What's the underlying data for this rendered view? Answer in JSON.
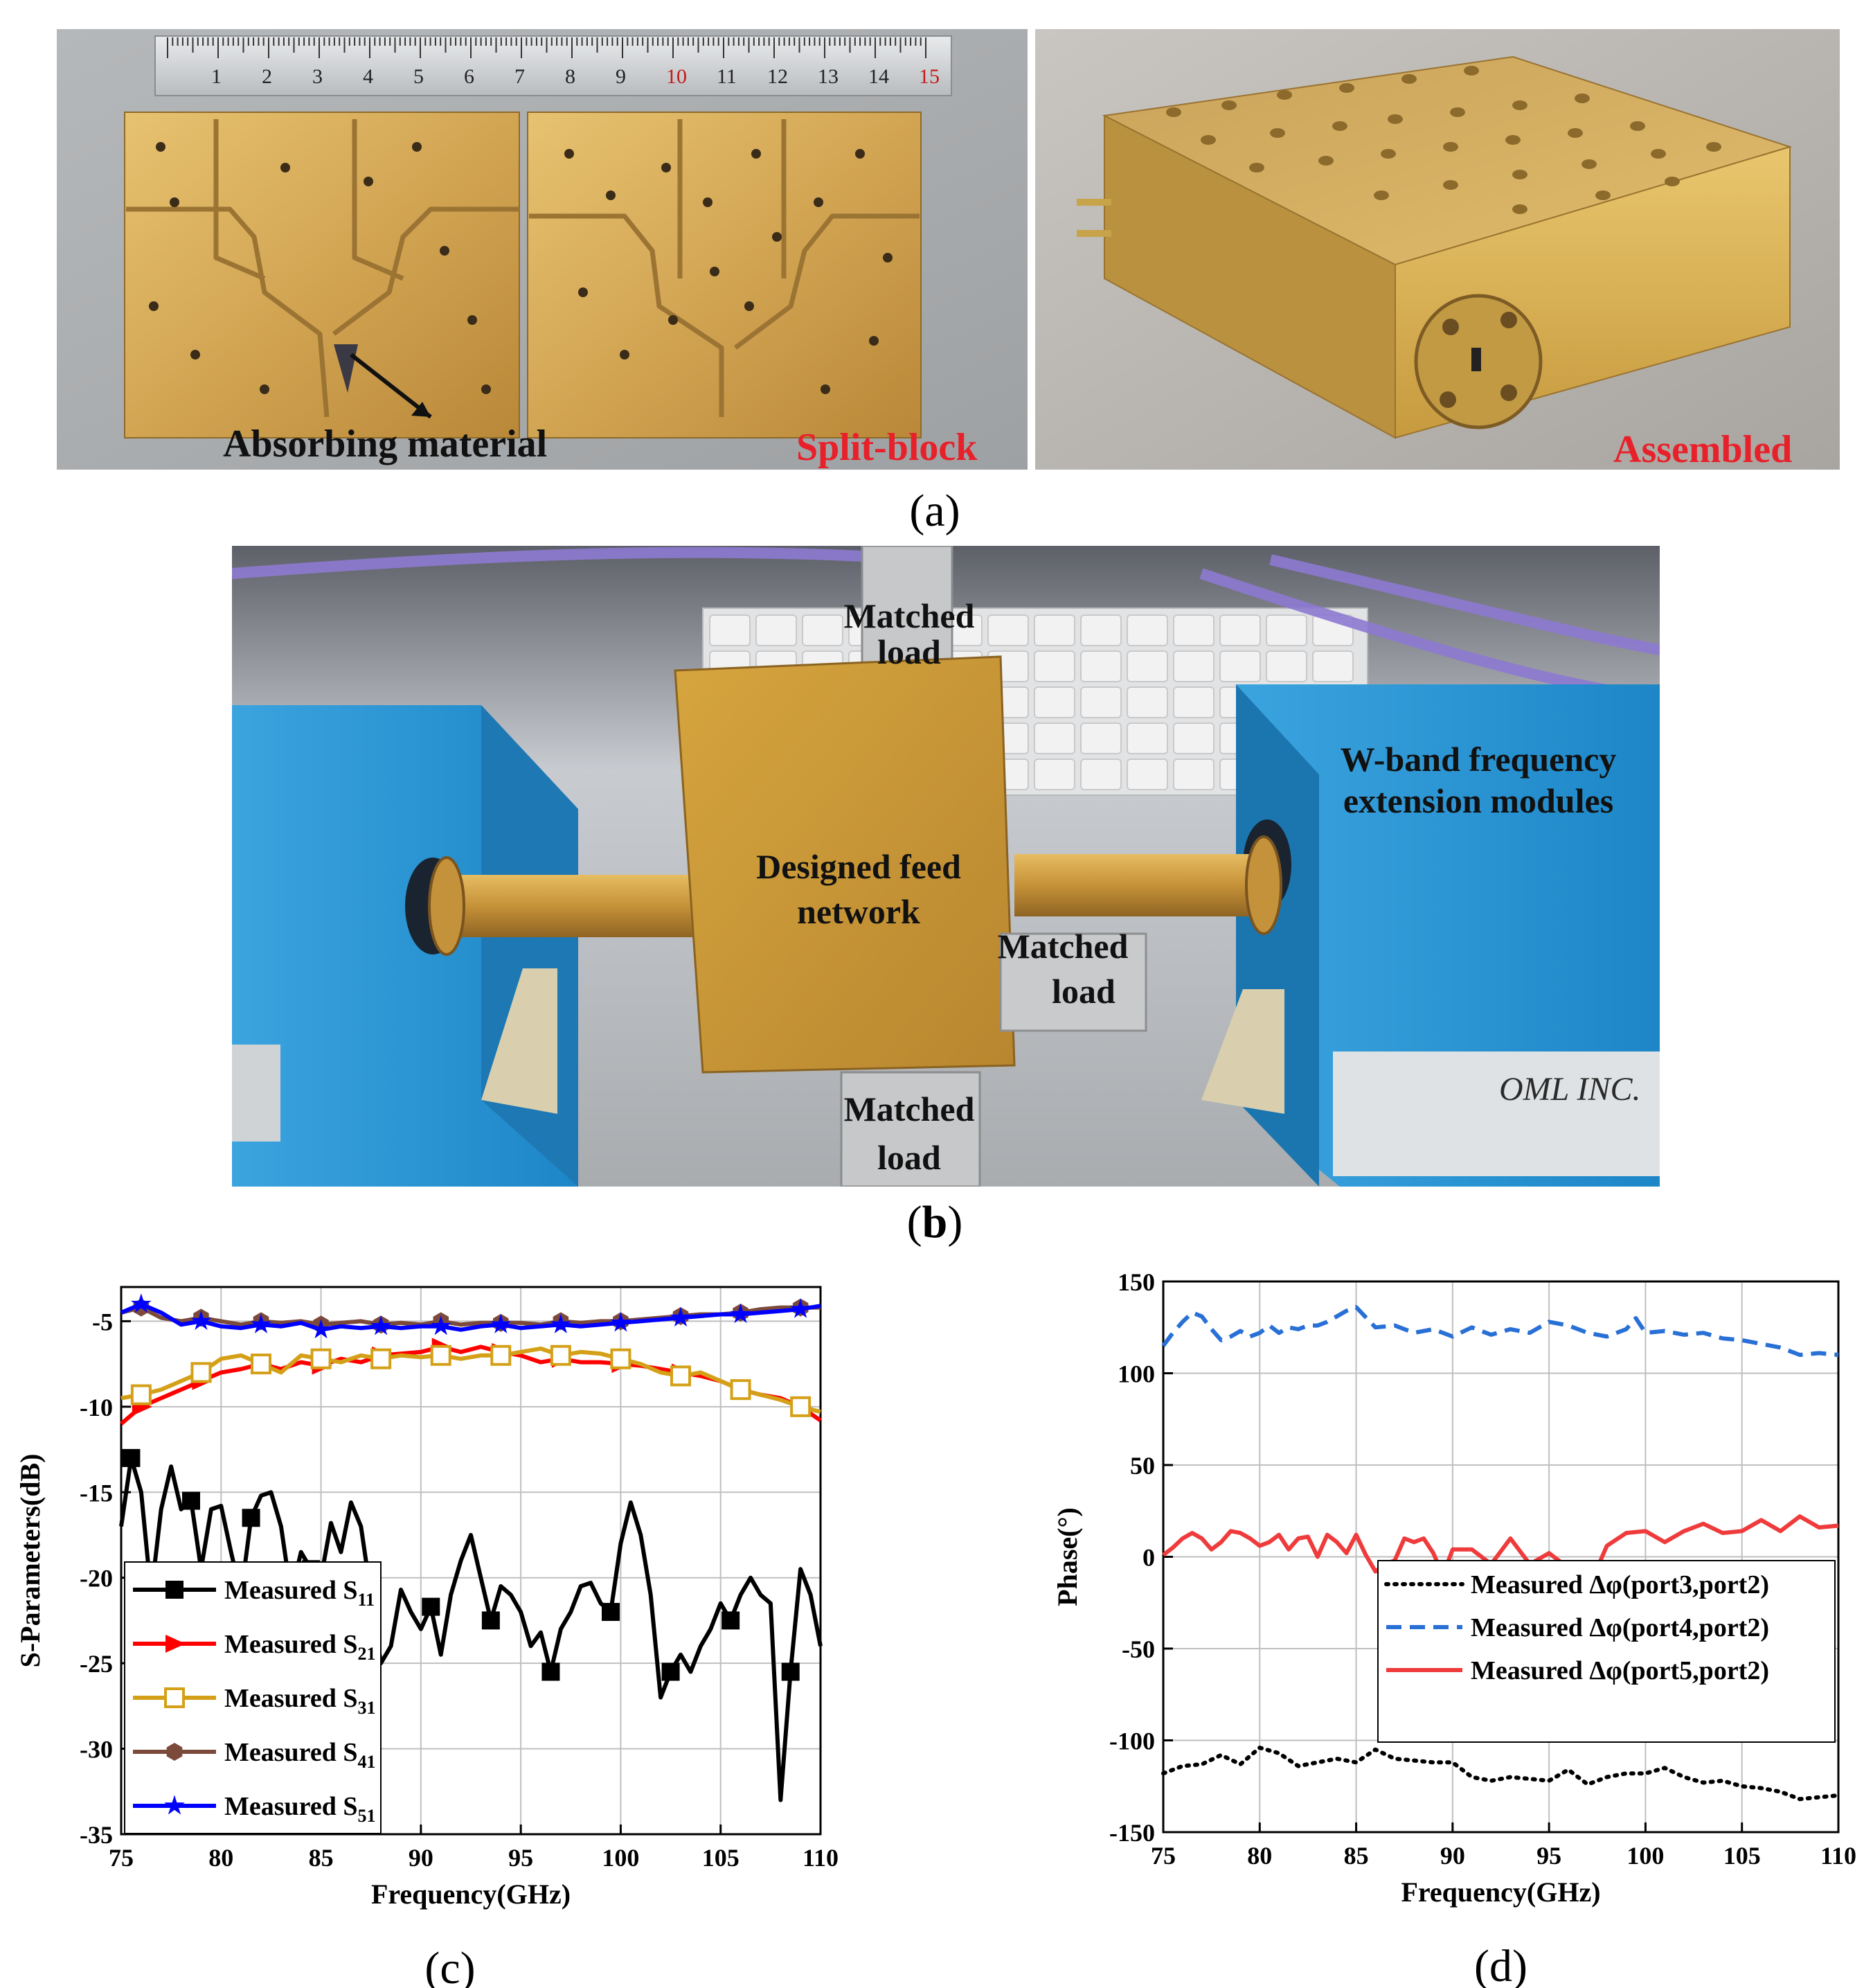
{
  "panel_a": {
    "caption_open": "(",
    "caption_letter": "a",
    "caption_close": ")",
    "ruler_numbers": [
      "1",
      "2",
      "3",
      "4",
      "5",
      "6",
      "7",
      "8",
      "9",
      "10",
      "11",
      "12",
      "13",
      "14",
      "15"
    ],
    "absorbing_label": "Absorbing material",
    "split_label": "Split-block",
    "assembled_label": "Assembled",
    "accent_red": "#e8202a"
  },
  "panel_b": {
    "caption_open": "(",
    "caption_letter": "b",
    "caption_close": ")",
    "load_top": [
      "Matched",
      "load"
    ],
    "load_right": [
      "Matched",
      "load"
    ],
    "load_bottom": [
      "Matched",
      "load"
    ],
    "feed_label": [
      "Designed feed",
      "network"
    ],
    "module_label": [
      "W-band frequency",
      "extension modules"
    ],
    "oml_brand": "OML INC.",
    "module_color": "#2a9bd6"
  },
  "panel_c": {
    "caption": "(c)",
    "chart_data": {
      "type": "line",
      "xlabel": "Frequency(GHz)",
      "ylabel": "S-Parameters(dB)",
      "xlim": [
        75,
        110
      ],
      "ylim": [
        -35,
        -3
      ],
      "xticks": [
        75,
        80,
        85,
        90,
        95,
        100,
        105,
        110
      ],
      "yticks": [
        -35,
        -30,
        -25,
        -20,
        -15,
        -10,
        -5
      ],
      "grid": true,
      "legend": "bottom-left",
      "series": [
        {
          "name": "Measured S11",
          "color": "#000000",
          "marker": "square",
          "x": [
            75,
            75.5,
            76,
            76.5,
            77,
            77.5,
            78,
            78.5,
            79,
            79.5,
            80,
            80.5,
            81,
            81.5,
            82,
            82.5,
            83,
            83.5,
            84,
            84.5,
            85,
            85.5,
            86,
            86.5,
            87,
            87.5,
            88,
            88.5,
            89,
            89.5,
            90,
            90.5,
            91,
            91.5,
            92,
            92.5,
            93,
            93.5,
            94,
            94.5,
            95,
            95.5,
            96,
            96.5,
            97,
            97.5,
            98,
            98.5,
            99,
            99.5,
            100,
            100.5,
            101,
            101.5,
            102,
            102.5,
            103,
            103.5,
            104,
            104.5,
            105,
            105.5,
            106,
            106.5,
            107,
            107.5,
            108,
            108.5,
            109,
            109.5,
            110
          ],
          "y": [
            -17,
            -13,
            -15,
            -21,
            -16,
            -13.5,
            -16,
            -15.5,
            -19.5,
            -16,
            -15.8,
            -18.5,
            -21,
            -16.5,
            -15.2,
            -15,
            -17,
            -21,
            -18.5,
            -19.5,
            -20,
            -16.8,
            -18.5,
            -15.6,
            -17,
            -21,
            -25,
            -24,
            -20.7,
            -22,
            -23,
            -21.7,
            -24.5,
            -21,
            -19,
            -17.5,
            -20,
            -22.5,
            -20.5,
            -21,
            -22,
            -24,
            -23.2,
            -25.5,
            -23,
            -22,
            -20.5,
            -20.3,
            -21.5,
            -22,
            -18,
            -15.6,
            -17.5,
            -21,
            -27,
            -25.5,
            -24.5,
            -25.5,
            -24,
            -23,
            -21.5,
            -22.5,
            -21,
            -20,
            -21,
            -21.5,
            -33,
            -25.5,
            -19.5,
            -21,
            -24
          ]
        },
        {
          "name": "Measured S21",
          "color": "#ff0000",
          "marker": "triangle",
          "x": [
            75,
            76,
            77,
            78,
            79,
            80,
            81,
            82,
            83,
            84,
            85,
            86,
            87,
            88,
            89,
            90,
            91,
            92,
            93,
            94,
            95,
            96,
            97,
            98,
            99,
            100,
            101,
            102,
            103,
            104,
            105,
            106,
            107,
            108,
            109,
            110
          ],
          "y": [
            -11,
            -10,
            -9.5,
            -9,
            -8.5,
            -8,
            -7.8,
            -7.5,
            -7.8,
            -7.4,
            -7.6,
            -7.2,
            -7.4,
            -7,
            -6.9,
            -6.8,
            -6.5,
            -6.8,
            -6.5,
            -6.8,
            -7.0,
            -7.4,
            -7.2,
            -7.4,
            -7.4,
            -7.5,
            -7.6,
            -7.8,
            -8.0,
            -8.2,
            -8.5,
            -9,
            -9.3,
            -9.5,
            -10,
            -10.8
          ]
        },
        {
          "name": "Measured S31",
          "color": "#d4a017",
          "marker": "open-square",
          "x": [
            75,
            76,
            77,
            78,
            79,
            80,
            81,
            82,
            83,
            84,
            85,
            86,
            87,
            88,
            89,
            90,
            91,
            92,
            93,
            94,
            95,
            96,
            97,
            98,
            99,
            100,
            101,
            102,
            103,
            104,
            105,
            106,
            107,
            108,
            109,
            110
          ],
          "y": [
            -9.5,
            -9.3,
            -9.0,
            -8.5,
            -8.0,
            -7.2,
            -7.0,
            -7.5,
            -8.0,
            -7.0,
            -7.2,
            -7.4,
            -7.0,
            -7.2,
            -7.0,
            -7.1,
            -7.0,
            -7.2,
            -7.0,
            -7.0,
            -6.8,
            -6.6,
            -7.0,
            -6.8,
            -6.9,
            -7.2,
            -7.5,
            -8.0,
            -8.2,
            -8.0,
            -8.5,
            -9.0,
            -9.3,
            -9.6,
            -10.0,
            -10.3
          ]
        },
        {
          "name": "Measured S41",
          "color": "#7b4a3a",
          "marker": "hexagon",
          "x": [
            75,
            76,
            77,
            78,
            79,
            80,
            81,
            82,
            83,
            84,
            85,
            86,
            87,
            88,
            89,
            90,
            91,
            92,
            93,
            94,
            95,
            96,
            97,
            98,
            99,
            100,
            101,
            102,
            103,
            104,
            105,
            106,
            107,
            108,
            109,
            110
          ],
          "y": [
            -4.5,
            -4.2,
            -4.8,
            -5.0,
            -4.8,
            -5.0,
            -5.2,
            -5.0,
            -5.1,
            -5.0,
            -5.2,
            -5.1,
            -5.0,
            -5.2,
            -5.1,
            -5.2,
            -5.0,
            -5.2,
            -5.1,
            -5.1,
            -5.1,
            -5.2,
            -5.0,
            -5.1,
            -5.0,
            -5.0,
            -4.9,
            -4.8,
            -4.7,
            -4.6,
            -4.6,
            -4.5,
            -4.3,
            -4.2,
            -4.2,
            -4.2
          ]
        },
        {
          "name": "Measured S51",
          "color": "#0000ff",
          "marker": "star",
          "x": [
            75,
            76,
            77,
            78,
            79,
            80,
            81,
            82,
            83,
            84,
            85,
            86,
            87,
            88,
            89,
            90,
            91,
            92,
            93,
            94,
            95,
            96,
            97,
            98,
            99,
            100,
            101,
            102,
            103,
            104,
            105,
            106,
            107,
            108,
            109,
            110
          ],
          "y": [
            -4.5,
            -4.0,
            -4.5,
            -5.2,
            -5.0,
            -5.3,
            -5.4,
            -5.2,
            -5.3,
            -5.1,
            -5.5,
            -5.3,
            -5.4,
            -5.3,
            -5.4,
            -5.3,
            -5.3,
            -5.5,
            -5.3,
            -5.2,
            -5.4,
            -5.3,
            -5.2,
            -5.3,
            -5.2,
            -5.1,
            -5.0,
            -4.9,
            -4.8,
            -4.7,
            -4.6,
            -4.6,
            -4.5,
            -4.4,
            -4.3,
            -4.1
          ]
        }
      ]
    }
  },
  "panel_d": {
    "caption": "(d)",
    "chart_data": {
      "type": "line",
      "xlabel": "Frequency(GHz)",
      "ylabel": "Phase(°)",
      "xlim": [
        75,
        110
      ],
      "ylim": [
        -150,
        150
      ],
      "xticks": [
        75,
        80,
        85,
        90,
        95,
        100,
        105,
        110
      ],
      "yticks": [
        -150,
        -100,
        -50,
        0,
        50,
        100,
        150
      ],
      "grid": true,
      "legend": "lower-right",
      "series": [
        {
          "name": "Measured Δφ(port3,port2)",
          "color": "#000000",
          "style": "dotted",
          "x": [
            75,
            76,
            77,
            78,
            79,
            80,
            81,
            82,
            83,
            84,
            85,
            86,
            87,
            88,
            89,
            90,
            91,
            92,
            93,
            94,
            95,
            96,
            97,
            98,
            99,
            100,
            101,
            102,
            103,
            104,
            105,
            106,
            107,
            108,
            109,
            110
          ],
          "y": [
            -118,
            -114,
            -113,
            -108,
            -113,
            -104,
            -107,
            -114,
            -112,
            -110,
            -112,
            -105,
            -110,
            -111,
            -112,
            -112,
            -120,
            -122,
            -120,
            -121,
            -122,
            -116,
            -124,
            -120,
            -118,
            -118,
            -115,
            -120,
            -123,
            -122,
            -125,
            -126,
            -128,
            -132,
            -131,
            -130
          ]
        },
        {
          "name": "Measured Δφ(port4,port2)",
          "color": "#2970d6",
          "style": "dashed",
          "x": [
            75,
            75.5,
            76,
            76.5,
            77,
            77.5,
            78,
            78.5,
            79,
            79.5,
            80,
            80.5,
            81,
            81.5,
            82,
            82.5,
            83,
            83.5,
            84,
            84.5,
            85,
            86,
            87,
            88,
            89,
            90,
            91,
            92,
            93,
            94,
            95,
            96,
            97,
            98,
            99,
            99.5,
            100,
            101,
            102,
            103,
            104,
            105,
            106,
            107,
            108,
            109,
            110
          ],
          "y": [
            115,
            122,
            128,
            133,
            131,
            124,
            118,
            120,
            123,
            120,
            122,
            126,
            122,
            125,
            124,
            126,
            126,
            128,
            131,
            134,
            136,
            125,
            126,
            122,
            124,
            120,
            125,
            121,
            124,
            122,
            128,
            126,
            122,
            120,
            124,
            130,
            122,
            123,
            121,
            122,
            119,
            118,
            116,
            114,
            110,
            111,
            110
          ]
        },
        {
          "name": "Measured Δφ(port5,port2)",
          "color": "#ef3b3b",
          "style": "solid",
          "x": [
            75,
            75.5,
            76,
            76.5,
            77,
            77.5,
            78,
            78.5,
            79,
            79.5,
            80,
            80.5,
            81,
            81.5,
            82,
            82.5,
            83,
            83.5,
            84,
            84.5,
            85,
            85.5,
            86,
            86.5,
            87,
            87.5,
            88,
            88.5,
            89,
            89.5,
            90,
            91,
            92,
            93,
            94,
            95,
            96,
            96.5,
            97,
            97.5,
            98,
            99,
            100,
            101,
            102,
            103,
            104,
            105,
            106,
            107,
            108,
            109,
            110
          ],
          "y": [
            1,
            5,
            10,
            13,
            10,
            4,
            8,
            14,
            13,
            10,
            6,
            8,
            12,
            4,
            10,
            11,
            0,
            12,
            8,
            2,
            12,
            1,
            -8,
            -4,
            -2,
            10,
            8,
            10,
            2,
            -10,
            4,
            4,
            -4,
            10,
            -4,
            2,
            -6,
            -8,
            -4,
            -6,
            6,
            13,
            14,
            8,
            14,
            18,
            13,
            14,
            20,
            14,
            22,
            16,
            17
          ]
        }
      ]
    }
  }
}
